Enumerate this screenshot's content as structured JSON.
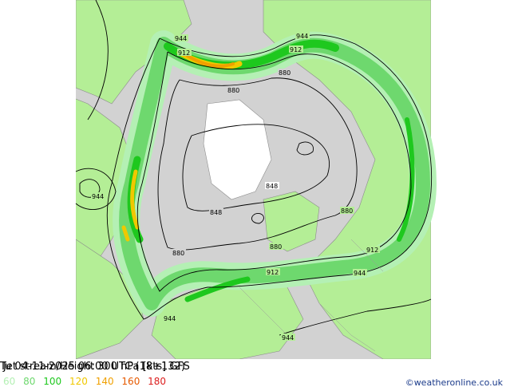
{
  "title": "Jet stream/Height 300 hPa [kts] GFS",
  "valid_time": "Tu 04-11-2025 06:00 UTC (18+132)",
  "credit": "©weatheronline.co.uk",
  "legend": [
    {
      "label": "60",
      "color": "#b4f0b4"
    },
    {
      "label": "80",
      "color": "#6ed86e"
    },
    {
      "label": "100",
      "color": "#1ec81e"
    },
    {
      "label": "120",
      "color": "#f0c800"
    },
    {
      "label": "140",
      "color": "#f0a000"
    },
    {
      "label": "160",
      "color": "#e65a00"
    },
    {
      "label": "180",
      "color": "#dc1e1e"
    }
  ],
  "contour_labels": {
    "c944a": "944",
    "c944b": "944",
    "c912a": "912",
    "c912b": "912",
    "c880a": "880",
    "c880b": "880",
    "c944c": "944",
    "c848a": "848",
    "c848b": "848",
    "c880c": "880",
    "c880d": "880",
    "c880e": "880",
    "c912c": "912",
    "c912d": "912",
    "c944d": "944",
    "c944e": "944",
    "c944f": "944"
  },
  "colors": {
    "land": "#b4ee96",
    "sea": "#d2d2d2",
    "border": "#8c8c8c"
  }
}
